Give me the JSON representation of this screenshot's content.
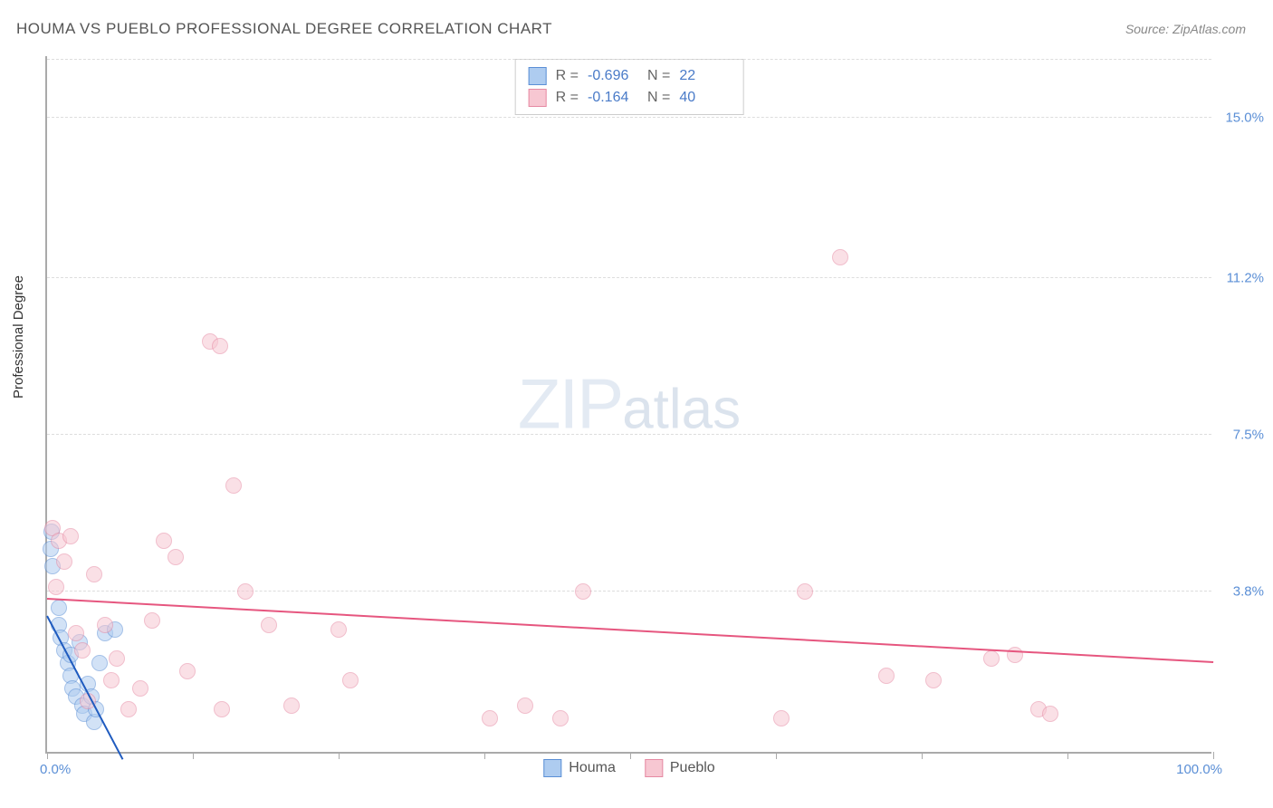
{
  "title": "HOUMA VS PUEBLO PROFESSIONAL DEGREE CORRELATION CHART",
  "source": "Source: ZipAtlas.com",
  "y_axis_label": "Professional Degree",
  "watermark_zip": "ZIP",
  "watermark_atlas": "atlas",
  "colors": {
    "houma_fill": "#aeccf0",
    "houma_stroke": "#5b8fd6",
    "pueblo_fill": "#f7c7d2",
    "pueblo_stroke": "#e68aa3",
    "houma_line": "#1f5bbf",
    "pueblo_line": "#e6567f",
    "tick_label": "#5b8fd6",
    "grid": "#dddddd",
    "axis": "#aaaaaa"
  },
  "chart": {
    "type": "scatter",
    "xlim": [
      0,
      100
    ],
    "ylim": [
      0,
      16.5
    ],
    "y_ticks": [
      {
        "v": 3.8,
        "label": "3.8%"
      },
      {
        "v": 7.5,
        "label": "7.5%"
      },
      {
        "v": 11.2,
        "label": "11.2%"
      },
      {
        "v": 15.0,
        "label": "15.0%"
      }
    ],
    "x_ticks": [
      0,
      12.5,
      25,
      37.5,
      50,
      62.5,
      75,
      87.5,
      100
    ],
    "x_min_label": "0.0%",
    "x_max_label": "100.0%",
    "marker_radius": 9,
    "marker_opacity": 0.55,
    "line_width": 2
  },
  "series": [
    {
      "name": "Houma",
      "color_key": "houma",
      "R": "-0.696",
      "N": "22",
      "trend": {
        "x1": 0,
        "y1": 3.2,
        "x2": 6.5,
        "y2": -0.2
      },
      "points": [
        [
          0.3,
          4.8
        ],
        [
          0.5,
          4.4
        ],
        [
          0.4,
          5.2
        ],
        [
          1.0,
          3.0
        ],
        [
          1.2,
          2.7
        ],
        [
          1.5,
          2.4
        ],
        [
          1.0,
          3.4
        ],
        [
          1.8,
          2.1
        ],
        [
          2.0,
          1.8
        ],
        [
          2.2,
          1.5
        ],
        [
          2.5,
          1.3
        ],
        [
          2.0,
          2.3
        ],
        [
          2.8,
          2.6
        ],
        [
          3.0,
          1.1
        ],
        [
          3.2,
          0.9
        ],
        [
          3.5,
          1.6
        ],
        [
          3.8,
          1.3
        ],
        [
          4.0,
          0.7
        ],
        [
          4.5,
          2.1
        ],
        [
          5.0,
          2.8
        ],
        [
          5.8,
          2.9
        ],
        [
          4.2,
          1.0
        ]
      ]
    },
    {
      "name": "Pueblo",
      "color_key": "pueblo",
      "R": "-0.164",
      "N": "40",
      "trend": {
        "x1": 0,
        "y1": 3.6,
        "x2": 100,
        "y2": 2.1
      },
      "points": [
        [
          0.5,
          5.3
        ],
        [
          1.0,
          5.0
        ],
        [
          1.5,
          4.5
        ],
        [
          0.8,
          3.9
        ],
        [
          2.0,
          5.1
        ],
        [
          2.5,
          2.8
        ],
        [
          3.0,
          2.4
        ],
        [
          3.5,
          1.2
        ],
        [
          4.0,
          4.2
        ],
        [
          5.0,
          3.0
        ],
        [
          5.5,
          1.7
        ],
        [
          6.0,
          2.2
        ],
        [
          7.0,
          1.0
        ],
        [
          8.0,
          1.5
        ],
        [
          9.0,
          3.1
        ],
        [
          10.0,
          5.0
        ],
        [
          11.0,
          4.6
        ],
        [
          12.0,
          1.9
        ],
        [
          14.0,
          9.7
        ],
        [
          14.8,
          9.6
        ],
        [
          15.0,
          1.0
        ],
        [
          16.0,
          6.3
        ],
        [
          17.0,
          3.8
        ],
        [
          19.0,
          3.0
        ],
        [
          21.0,
          1.1
        ],
        [
          25.0,
          2.9
        ],
        [
          26.0,
          1.7
        ],
        [
          38.0,
          0.8
        ],
        [
          41.0,
          1.1
        ],
        [
          44.0,
          0.8
        ],
        [
          46.0,
          3.8
        ],
        [
          63.0,
          0.8
        ],
        [
          65.0,
          3.8
        ],
        [
          68.0,
          11.7
        ],
        [
          72.0,
          1.8
        ],
        [
          76.0,
          1.7
        ],
        [
          81.0,
          2.2
        ],
        [
          83.0,
          2.3
        ],
        [
          85.0,
          1.0
        ],
        [
          86.0,
          0.9
        ]
      ]
    }
  ],
  "legend_bottom": [
    {
      "label": "Houma",
      "color_key": "houma"
    },
    {
      "label": "Pueblo",
      "color_key": "pueblo"
    }
  ]
}
